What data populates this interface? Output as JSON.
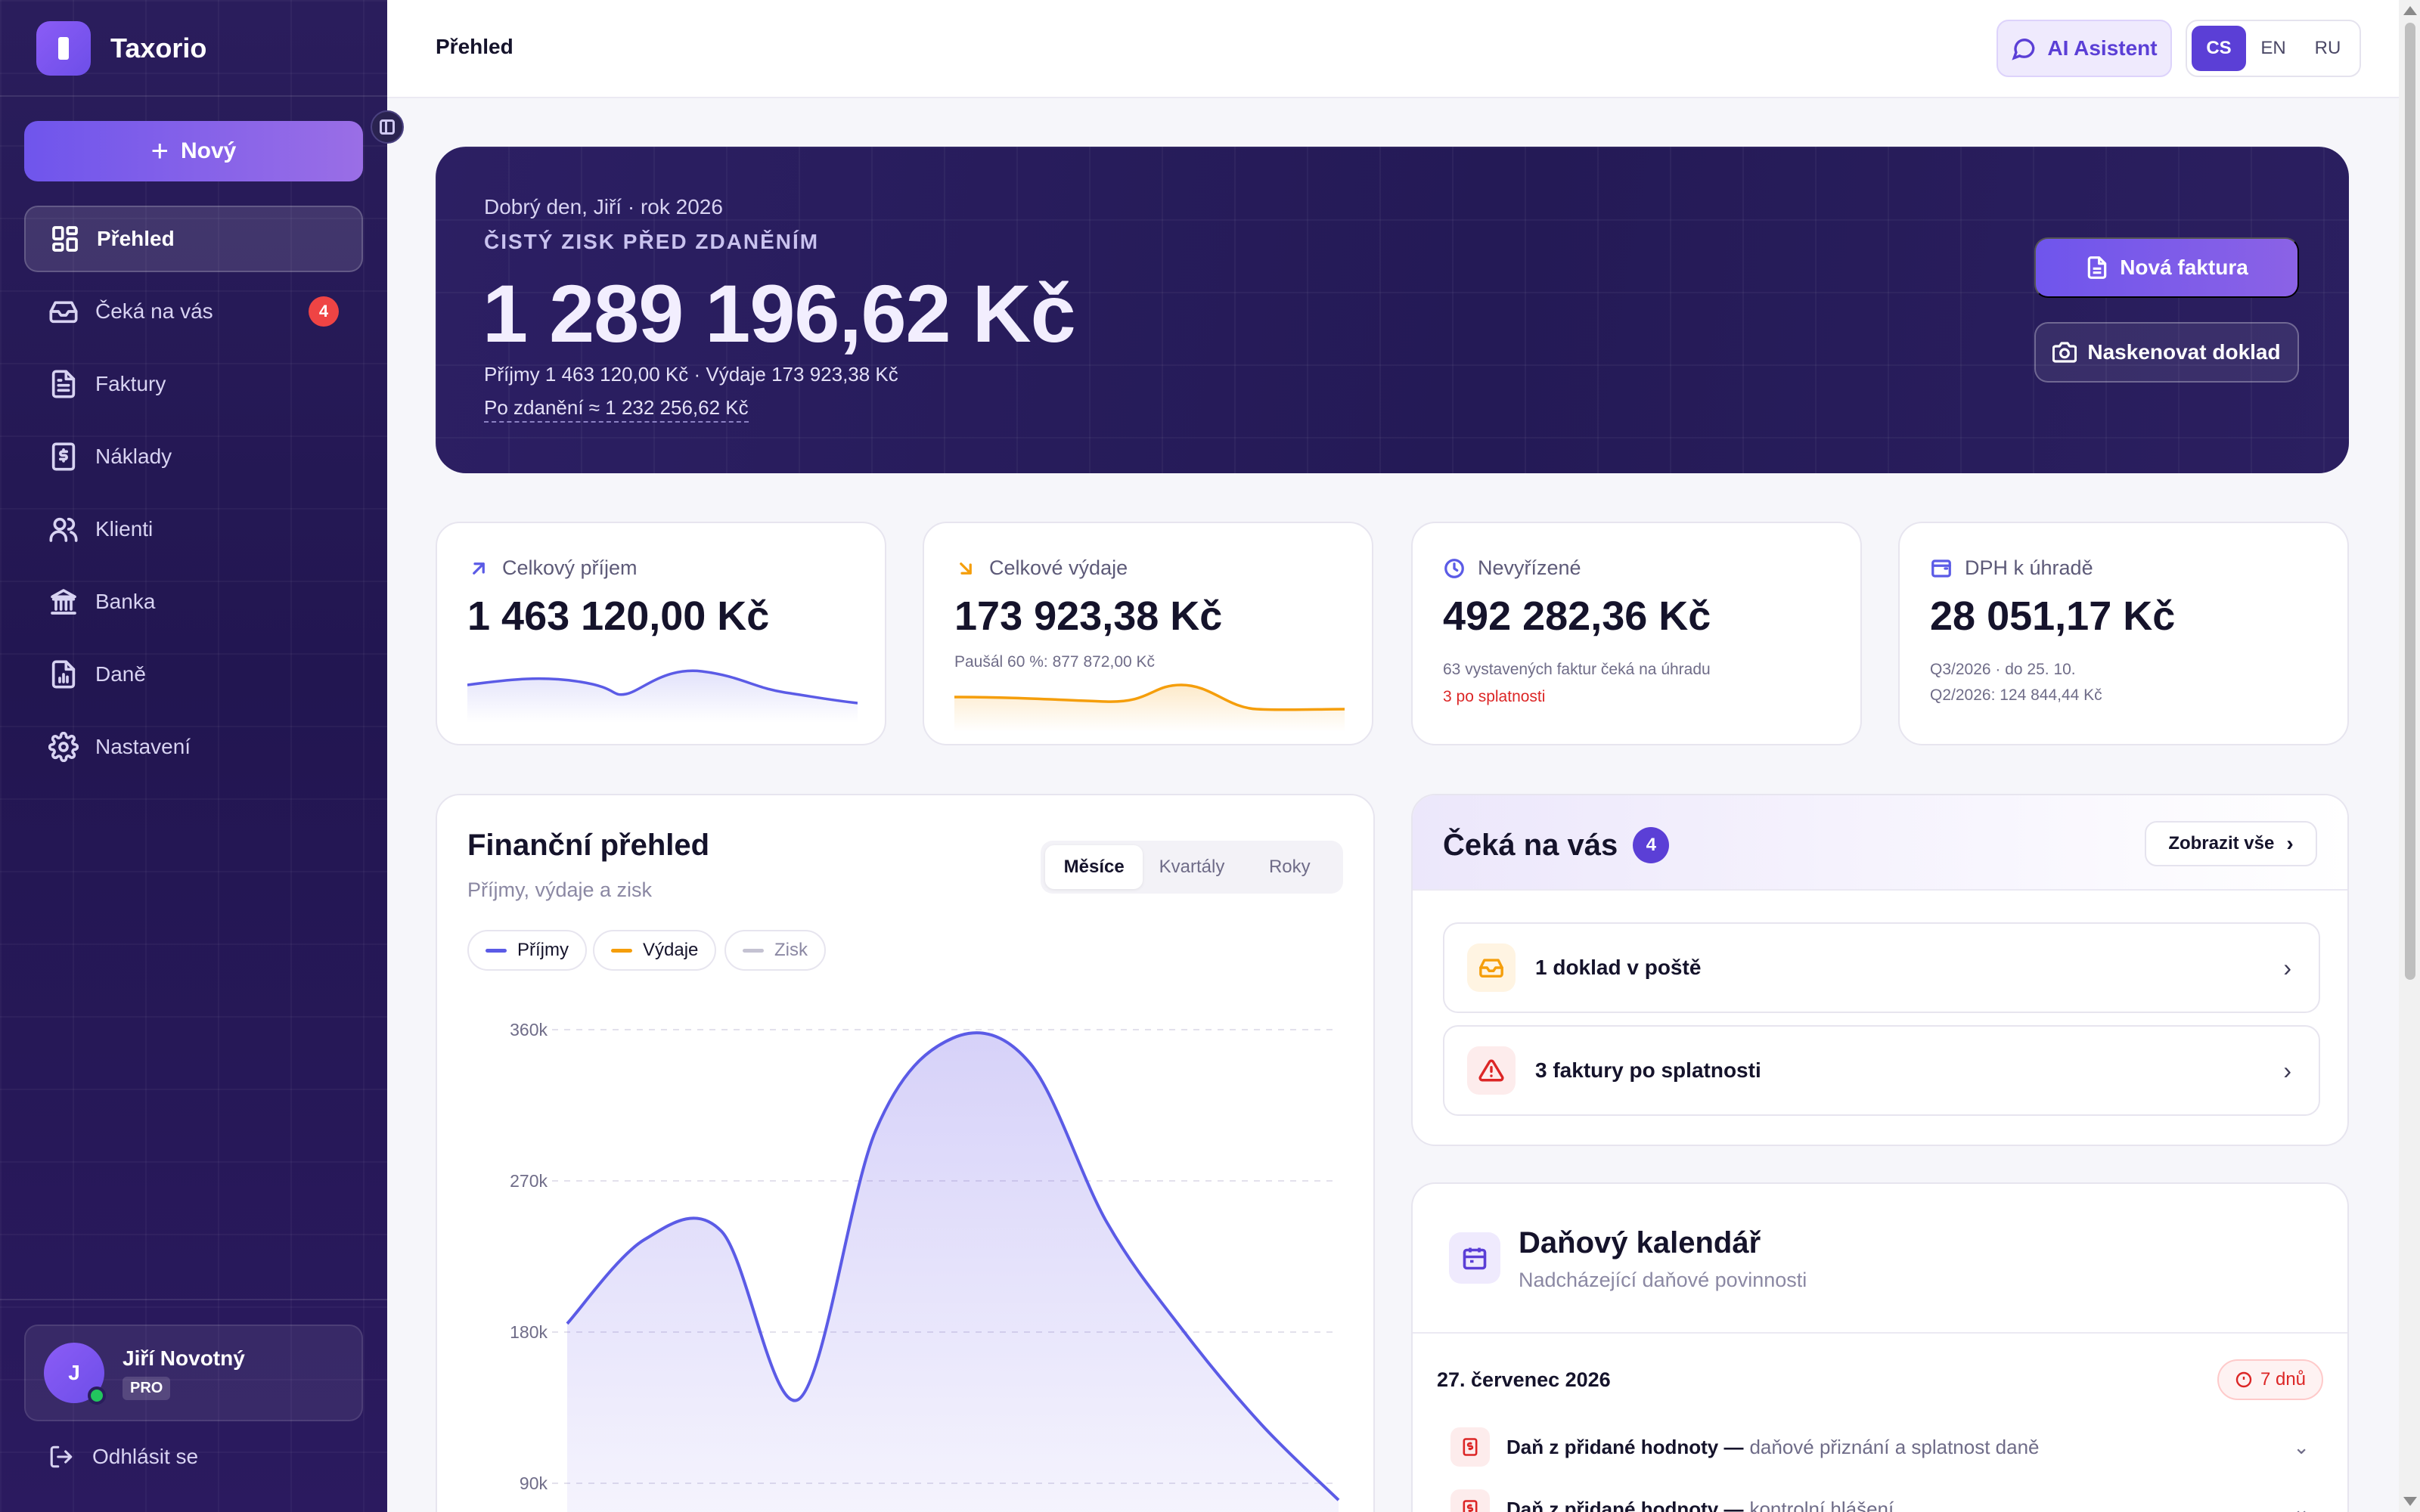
{
  "sidebar": {
    "brand": "Taxorio",
    "new_button": "Nový",
    "items": [
      {
        "label": "Přehled",
        "icon": "dashboard-icon",
        "active": true
      },
      {
        "label": "Čeká na vás",
        "icon": "inbox-icon",
        "badge": "4"
      },
      {
        "label": "Faktury",
        "icon": "document-icon"
      },
      {
        "label": "Náklady",
        "icon": "receipt-icon"
      },
      {
        "label": "Klienti",
        "icon": "users-icon"
      },
      {
        "label": "Banka",
        "icon": "bank-icon"
      },
      {
        "label": "Daně",
        "icon": "report-icon"
      },
      {
        "label": "Nastavení",
        "icon": "gear-icon"
      }
    ],
    "user": {
      "initial": "J",
      "name": "Jiří Novotný",
      "plan": "PRO"
    },
    "logout": "Odhlásit se"
  },
  "topbar": {
    "title": "Přehled",
    "ai_button": "AI Asistent",
    "languages": [
      "CS",
      "EN",
      "RU"
    ],
    "active_language": "CS"
  },
  "hero": {
    "greeting": "Dobrý den, Jiří · rok 2026",
    "label": "ČISTÝ ZISK PŘED ZDANĚNÍM",
    "amount": "1 289 196,62 Kč",
    "summary": "Příjmy 1 463 120,00 Kč · Výdaje 173 923,38 Kč",
    "after_tax": "Po zdanění ≈ 1 232 256,62 Kč",
    "new_invoice": "Nová faktura",
    "scan_receipt": "Naskenovat doklad"
  },
  "stats": {
    "income": {
      "label": "Celkový příjem",
      "value": "1 463 120,00 Kč",
      "color": "#5b5be6"
    },
    "expenses": {
      "label": "Celkové výdaje",
      "value": "173 923,38 Kč",
      "note": "Paušál 60 %: 877 872,00 Kč",
      "color": "#f59e0b"
    },
    "pending": {
      "label": "Nevyřízené",
      "value": "492 282,36 Kč",
      "note": "63 vystavených faktur čeká na úhradu",
      "alert": "3 po splatnosti"
    },
    "vat": {
      "label": "DPH k úhradě",
      "value": "28 051,17 Kč",
      "note1": "Q3/2026 · do 25. 10.",
      "note2": "Q2/2026: 124 844,44 Kč"
    }
  },
  "finance": {
    "title": "Finanční přehled",
    "subtitle": "Příjmy, výdaje a zisk",
    "periods": [
      "Měsíce",
      "Kvartály",
      "Roky"
    ],
    "active_period": "Měsíce",
    "legend": {
      "income": "Příjmy",
      "expenses": "Výdaje",
      "profit": "Zisk"
    }
  },
  "chart_data": {
    "type": "area",
    "y_ticks": [
      "360k",
      "270k",
      "180k",
      "90k"
    ],
    "ylim": [
      0,
      360000
    ],
    "series": [
      {
        "name": "Příjmy",
        "values": [
          185000,
          235000,
          240000,
          140000,
          300000,
          355000,
          340000,
          245000,
          180000,
          125000,
          80000
        ],
        "color": "#5b5be6"
      }
    ]
  },
  "waiting": {
    "title": "Čeká na vás",
    "count": "4",
    "show_all": "Zobrazit vše",
    "items": [
      {
        "label": "1 doklad v poště",
        "icon": "inbox-icon",
        "color": "#f59e0b"
      },
      {
        "label": "3 faktury po splatnosti",
        "icon": "warning-icon",
        "color": "#dc2626"
      }
    ]
  },
  "calendar": {
    "title": "Daňový kalendář",
    "subtitle": "Nadcházející daňové povinnosti",
    "date": "27. červenec 2026",
    "days_left": "7 dnů",
    "rows": [
      {
        "name": "Daň z přidané hodnoty —",
        "desc": "daňové přiznání a splatnost daně"
      },
      {
        "name": "Daň z přidané hodnoty —",
        "desc": "kontrolní hlášení"
      }
    ]
  }
}
